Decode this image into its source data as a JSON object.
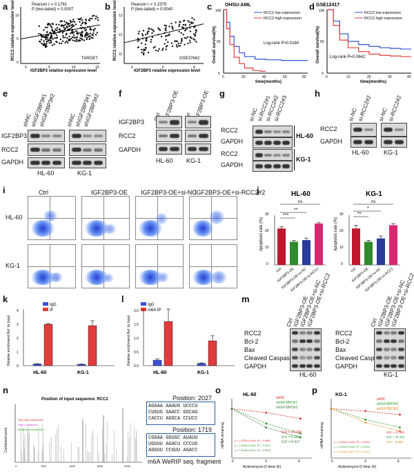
{
  "labels": {
    "a": "a",
    "b": "b",
    "c": "c",
    "d": "d",
    "e": "e",
    "f": "f",
    "g": "g",
    "h": "h",
    "i": "i",
    "j": "j",
    "k": "k",
    "l": "l",
    "m": "m",
    "n": "n",
    "o": "o",
    "p": "p"
  },
  "panel_a": {
    "stat1": "Pearson r = 0.1781",
    "stat2": "P (two-tailed) = 0.0007",
    "tag": "TARGET",
    "xlabel": "IGF2BP3 relative expression level",
    "ylabel": "RCC2 relative expression level",
    "xticks": [
      "0",
      "5",
      "10",
      "15"
    ],
    "yticks": [
      "0",
      "5",
      "10"
    ]
  },
  "panel_b": {
    "stat1": "Pearson r = 0.2379",
    "stat2": "P (two-tailed) = 0.0040",
    "tag": "GSE37642",
    "xlabel": "IGF2BP3 relative expression level",
    "ylabel": "RCC2 relative expression level",
    "xticks": [
      "4",
      "6",
      "8"
    ],
    "yticks": [
      "11",
      "12",
      "13"
    ]
  },
  "panel_c": {
    "title": "OHSU-AML",
    "leg_low": "RCC2 low expression",
    "leg_high": "RCC2 high expression",
    "logrank": "Log-rank P=0.0160",
    "xlabel": "time(months)",
    "ylabel": "Overall survival(%)",
    "xticks": [
      "0",
      "20",
      "40",
      "60",
      "80"
    ],
    "yticks": [
      "0",
      "50",
      "100"
    ]
  },
  "panel_d": {
    "title": "GSE12417",
    "leg_low": "RCC2 low expression",
    "leg_high": "RCC2 high expression",
    "logrank": "Log-rank P=0.0642",
    "xlabel": "time(months)",
    "ylabel": "Overall survival(%)",
    "xticks": [
      "0",
      "10",
      "20",
      "30",
      "40"
    ],
    "yticks": [
      "0",
      "50",
      "100"
    ]
  },
  "panel_e": {
    "lanes": [
      "shNC",
      "shIGF2BP3#1",
      "shIGF2BP3#2",
      "shNC",
      "shIGF2BP3#1",
      "shIGF2BP3#2"
    ],
    "rows": [
      "IGF2BP3",
      "RCC2",
      "GAPDH"
    ],
    "cells": [
      "HL-60",
      "KG-1"
    ]
  },
  "panel_f": {
    "lanes": [
      "Ctrl",
      "IGF2BP3-OE",
      "Ctrl",
      "IGF2BP3-OE"
    ],
    "rows": [
      "IGF2BP3",
      "RCC2",
      "GAPDH"
    ],
    "cells": [
      "HL-60",
      "KG-1"
    ]
  },
  "panel_g": {
    "lanes": [
      "si-NC",
      "si-RCC2#1",
      "si-RCC2#2",
      "si-RCC2#3"
    ],
    "rows": [
      "RCC2",
      "GAPDH",
      "RCC2",
      "GAPDH"
    ],
    "cells": [
      "HL-60",
      "KG-1"
    ]
  },
  "panel_h": {
    "lanes": [
      "si-NC",
      "si-RCC2#2",
      "si-NC",
      "si-RCC2#2"
    ],
    "rows": [
      "RCC2",
      "GAPDH"
    ],
    "cells": [
      "HL-60",
      "KG-1"
    ]
  },
  "panel_i": {
    "cols": [
      "Ctrl",
      "IGF2BP3-OE",
      "IGF2BP3-OE+si-NC",
      "IGF2BP3-OE+si-RCC2#2"
    ],
    "rows": [
      "HL-60",
      "KG-1"
    ]
  },
  "panel_j": {
    "hl_title": "HL-60",
    "kg_title": "KG-1",
    "ylabel": "Apoptosis rate (%)",
    "sig_hl": [
      "***",
      "**",
      "ns"
    ],
    "sig_kg": [
      "**",
      "*",
      "ns"
    ],
    "cats": [
      "Ctrl",
      "IGF2BP3-OE",
      "IGF2BP3-OE+si-NC",
      "IGF2BP3-OE+si-RCC2"
    ],
    "yticks": [
      "0",
      "10",
      "20",
      "30"
    ]
  },
  "panel_k": {
    "leg": [
      "IgG",
      "IF"
    ],
    "ylabel": "Relative enrichment Ref. to Input",
    "cats": [
      "HL-60",
      "KG-1"
    ],
    "yticks": [
      "0",
      "1",
      "2",
      "3",
      "4"
    ]
  },
  "panel_l": {
    "leg": [
      "IgG",
      "m6A IP"
    ],
    "ylabel": "Relative enrichment Ref. to Input",
    "cats": [
      "HL-60",
      "KG-1"
    ],
    "yticks": [
      "0.0",
      "0.5",
      "1.0",
      "1.5",
      "2.0"
    ]
  },
  "panel_m": {
    "lanes": [
      "Ctrl",
      "IGF2BP3-OE",
      "IGF2BP3-OE+si-NC",
      "IGF2BP3-OE+si-RCC2"
    ],
    "rows": [
      "RCC2",
      "Bcl-2",
      "Bax",
      "Cleaved Caspase-3",
      "GAPDH"
    ],
    "cells": [
      "HL-60",
      "KG-1"
    ]
  },
  "panel_n": {
    "title": "Position of input sequence: RCC2",
    "ylabel": "Combined score",
    "pos1": "Position: 2027",
    "seq1": [
      "AGAAA AAAUG UCCCU",
      "CUGUG GAACC GGCAG",
      "CACCU AGGCA CCUCC"
    ],
    "pos2": "Position: 1719",
    "seq2": [
      "CGGAA GGUGC AUAUU",
      "UGUUU AGACU CCCUG",
      "AGGUU CCGUU AGACC"
    ],
    "caption": "m6A WeRIP seq. fragment",
    "legend": [
      "Very high confidence",
      "High confidence",
      "Moderate confidence"
    ],
    "xticks": [
      "0",
      "500",
      "1000",
      "1500",
      "2000"
    ]
  },
  "panel_o": {
    "title": "HL-60",
    "leg": [
      "shNC",
      "shIGF2BP3#1",
      "shIGF2BP3#2"
    ],
    "eq": [
      "y = 1.0375e-0.044x, R² = 0.9951",
      "y = 1.0335e-0.054x, R² = 0.9914",
      "y = 1.0226e-0.061x, R² = 0.9876"
    ],
    "thalf": [
      "t1/2 = 20.182",
      "t1/2 = 5.383",
      "t1/2 = 4.417"
    ],
    "xlabel": "Actinomycin D time (h)",
    "ylabel": "mRNA remaining",
    "xticks": [
      "0",
      "3",
      "6"
    ]
  },
  "panel_p": {
    "title": "KG-1",
    "leg": [
      "shNC",
      "shIGF2BP3#1",
      "shIGF2BP3#2"
    ],
    "eq": [
      "y = 1.0253e-0.025x, R² = 0.9874",
      "y = 1.0249e-0.049x, R² = 0.9944",
      "y = 1.0226e-0.057x, R² = 0.9473"
    ],
    "thalf": [
      "t1/2 = 27.902",
      "t1/2 = 10.101",
      "t1/2 = 8.265"
    ],
    "xlabel": "Actinomycin D time (h)",
    "ylabel": "mRNA remaining",
    "xticks": [
      "0",
      "3",
      "6"
    ]
  },
  "chart_data": [
    {
      "type": "scatter",
      "title": "",
      "xlabel": "IGF2BP3 relative expression level",
      "ylabel": "RCC2 relative expression level",
      "xlim": [
        0,
        15
      ],
      "ylim": [
        0,
        12
      ],
      "trend": [
        [
          0,
          5.2
        ],
        [
          15,
          8.2
        ]
      ]
    },
    {
      "type": "scatter",
      "title": "",
      "xlabel": "IGF2BP3 relative expression level",
      "ylabel": "RCC2 relative expression level",
      "xlim": [
        3,
        9
      ],
      "ylim": [
        10.5,
        13.5
      ],
      "trend": [
        [
          3,
          11.6
        ],
        [
          9,
          12.6
        ]
      ]
    },
    {
      "type": "line",
      "title": "OHSU-AML",
      "xlabel": "time(months)",
      "ylabel": "Overall survival(%)",
      "xlim": [
        0,
        80
      ],
      "ylim": [
        0,
        100
      ],
      "series": [
        {
          "name": "RCC2 low expression",
          "color": "#2f4fd8",
          "x": [
            0,
            3,
            6,
            10,
            15,
            20,
            30,
            40,
            55,
            70,
            80
          ],
          "y": [
            100,
            80,
            58,
            42,
            32,
            26,
            22,
            21,
            20,
            20,
            20
          ]
        },
        {
          "name": "RCC2 high expression",
          "color": "#e23b3b",
          "x": [
            0,
            3,
            6,
            10,
            15,
            20,
            28,
            35,
            40
          ],
          "y": [
            100,
            70,
            45,
            25,
            15,
            8,
            4,
            3,
            3
          ]
        }
      ]
    },
    {
      "type": "line",
      "title": "GSE12417",
      "xlabel": "time(months)",
      "ylabel": "Overall survival(%)",
      "xlim": [
        0,
        40
      ],
      "ylim": [
        0,
        100
      ],
      "series": [
        {
          "name": "RCC2 low expression",
          "color": "#2f4fd8",
          "x": [
            0,
            3,
            6,
            10,
            15,
            20,
            25,
            30,
            35,
            40
          ],
          "y": [
            100,
            82,
            62,
            50,
            45,
            42,
            40,
            39,
            38,
            38
          ]
        },
        {
          "name": "RCC2 high expression",
          "color": "#e23b3b",
          "x": [
            0,
            3,
            6,
            10,
            15,
            20,
            25,
            30,
            35,
            40
          ],
          "y": [
            100,
            75,
            52,
            40,
            34,
            30,
            28,
            27,
            26,
            26
          ]
        }
      ]
    },
    {
      "type": "bar",
      "title": "HL-60",
      "ylabel": "Apoptosis rate (%)",
      "categories": [
        "Ctrl",
        "IGF2BP3-OE",
        "IGF2BP3-OE+si-NC",
        "IGF2BP3-OE+si-RCC2"
      ],
      "values": [
        22,
        14,
        15,
        25
      ],
      "errors": [
        1,
        0.8,
        1.2,
        0.5
      ],
      "colors": [
        "#c0172e",
        "#2e8b2e",
        "#2a3b9a",
        "#d8286e"
      ],
      "ylim": [
        0,
        30
      ]
    },
    {
      "type": "bar",
      "title": "KG-1",
      "ylabel": "Apoptosis rate (%)",
      "categories": [
        "Ctrl",
        "IGF2BP3-OE",
        "IGF2BP3-OE+si-NC",
        "IGF2BP3-OE+si-RCC2"
      ],
      "values": [
        22,
        14,
        16,
        24
      ],
      "errors": [
        2,
        0.8,
        1.5,
        1
      ],
      "colors": [
        "#c0172e",
        "#2e8b2e",
        "#2a3b9a",
        "#d8286e"
      ],
      "ylim": [
        0,
        30
      ]
    },
    {
      "type": "bar",
      "ylabel": "Relative enrichment Ref. to Input",
      "categories": [
        "HL-60",
        "KG-1"
      ],
      "series": [
        {
          "name": "IgG",
          "color": "#3b4fd8",
          "values": [
            0.12,
            0.1
          ],
          "errors": [
            0.02,
            0.02
          ]
        },
        {
          "name": "IF",
          "color": "#e23b3b",
          "values": [
            3.0,
            2.9
          ],
          "errors": [
            0.05,
            0.35
          ]
        }
      ],
      "ylim": [
        0,
        4
      ]
    },
    {
      "type": "bar",
      "ylabel": "Relative enrichment Ref. to Input",
      "categories": [
        "HL-60",
        "KG-1"
      ],
      "series": [
        {
          "name": "IgG",
          "color": "#3b4fd8",
          "values": [
            0.2,
            0.08
          ],
          "errors": [
            0.05,
            0.02
          ]
        },
        {
          "name": "m6A IP",
          "color": "#e23b3b",
          "values": [
            1.6,
            0.9
          ],
          "errors": [
            0.45,
            0.18
          ]
        }
      ],
      "ylim": [
        0,
        2
      ]
    },
    {
      "type": "line",
      "title": "HL-60",
      "xlabel": "Actinomycin D time (h)",
      "ylabel": "mRNA remaining",
      "xlim": [
        0,
        7
      ],
      "ylim": [
        0,
        1.2
      ],
      "series": [
        {
          "name": "shNC",
          "color": "#d22",
          "x": [
            0,
            3,
            6
          ],
          "y": [
            1.0,
            0.92,
            0.8
          ]
        },
        {
          "name": "shIGF2BP3#1",
          "color": "#2a9a2a",
          "x": [
            0,
            3,
            6
          ],
          "y": [
            1.0,
            0.7,
            0.5
          ]
        },
        {
          "name": "shIGF2BP3#2",
          "color": "#3a7a3a",
          "x": [
            0,
            3,
            6
          ],
          "y": [
            1.0,
            0.62,
            0.42
          ]
        }
      ]
    },
    {
      "type": "line",
      "title": "KG-1",
      "xlabel": "Actinomycin D time (h)",
      "ylabel": "mRNA remaining",
      "xlim": [
        0,
        7
      ],
      "ylim": [
        0,
        1.2
      ],
      "series": [
        {
          "name": "shNC",
          "color": "#d22",
          "x": [
            0,
            3,
            6
          ],
          "y": [
            1.0,
            0.95,
            0.88
          ]
        },
        {
          "name": "shIGF2BP3#1",
          "color": "#2a9a2a",
          "x": [
            0,
            3,
            6
          ],
          "y": [
            1.0,
            0.78,
            0.62
          ]
        },
        {
          "name": "shIGF2BP3#2",
          "color": "#e08a20",
          "x": [
            0,
            3,
            6
          ],
          "y": [
            1.0,
            0.72,
            0.55
          ]
        }
      ]
    }
  ]
}
